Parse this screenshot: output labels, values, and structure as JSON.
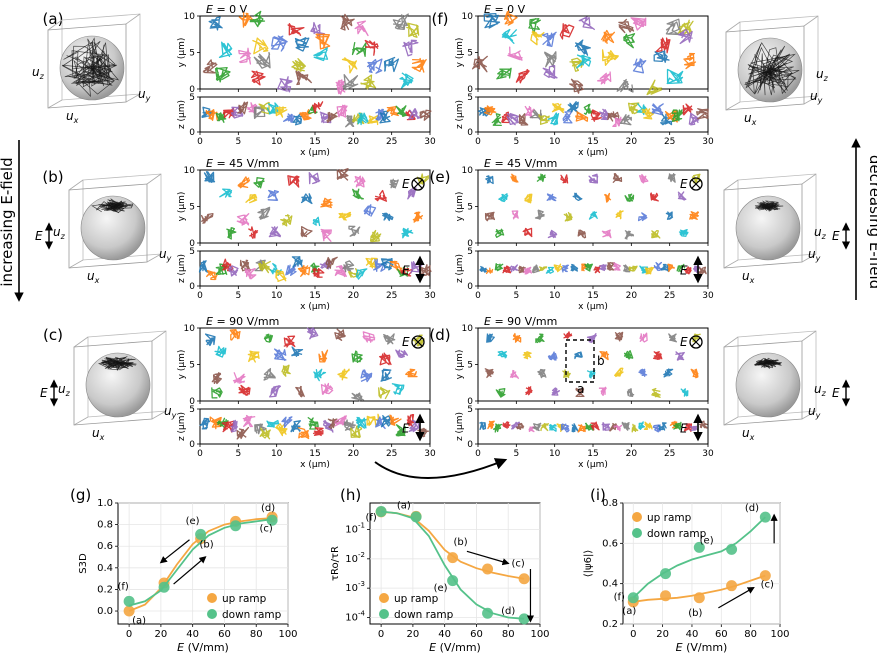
{
  "side_labels": {
    "left": "increasing E-field",
    "right": "decreasing E-field"
  },
  "axis_symbols": {
    "ux": "u",
    "ux_sub": "x",
    "uy": "u",
    "uy_sub": "y",
    "uz": "u",
    "uz_sub": "z",
    "E": "E"
  },
  "panels": [
    {
      "id": "a",
      "label": "(a)",
      "field": "E = 0 V",
      "e_marks": false
    },
    {
      "id": "b",
      "label": "(b)",
      "field": "E = 45 V/mm",
      "e_marks": true
    },
    {
      "id": "c",
      "label": "(c)",
      "field": "E = 90 V/mm",
      "e_marks": true
    },
    {
      "id": "f",
      "label": "(f)",
      "field": "E = 0 V",
      "e_marks": false
    },
    {
      "id": "e",
      "label": "(e)",
      "field": "E = 45 V/mm",
      "e_marks": true
    },
    {
      "id": "d",
      "label": "(d)",
      "field": "E = 90 V/mm",
      "e_marks": true
    }
  ],
  "traj_axes": {
    "xlabel": "x (μm)",
    "ylabel": "y (μm)",
    "zlabel": "z (μm)",
    "x_ticks": [
      "0",
      "5",
      "10",
      "15",
      "20",
      "25",
      "30"
    ],
    "y_ticks": [
      "0",
      "5",
      "10"
    ],
    "z_ticks": [
      "0",
      "5"
    ]
  },
  "unit_cell": {
    "a": "a",
    "b": "b"
  },
  "colors": {
    "up": "#f5a742",
    "down": "#55c28a",
    "arrow": "#000000"
  },
  "chart_data": [
    {
      "id": "g",
      "label": "(g)",
      "type": "line",
      "ylabel": "S3D",
      "xlabel": "E (V/mm)",
      "xlim": [
        -7,
        100
      ],
      "ylim": [
        -0.12,
        1.0
      ],
      "x_ticks": [
        0,
        20,
        40,
        60,
        80,
        100
      ],
      "y_ticks": [
        0.0,
        0.2,
        0.4,
        0.6,
        0.8,
        1.0
      ],
      "legend": {
        "position": "bottom-right",
        "entries": [
          "up ramp",
          "down ramp"
        ]
      },
      "series": [
        {
          "name": "up ramp",
          "x": [
            0,
            22,
            45,
            67,
            90
          ],
          "y": [
            0.0,
            0.26,
            0.67,
            0.83,
            0.87
          ],
          "fit": [
            [
              0,
              0.0
            ],
            [
              10,
              0.06
            ],
            [
              20,
              0.21
            ],
            [
              30,
              0.43
            ],
            [
              40,
              0.62
            ],
            [
              50,
              0.74
            ],
            [
              60,
              0.8
            ],
            [
              70,
              0.83
            ],
            [
              80,
              0.85
            ],
            [
              90,
              0.86
            ]
          ]
        },
        {
          "name": "down ramp",
          "x": [
            0,
            22,
            45,
            67,
            90
          ],
          "y": [
            0.09,
            0.22,
            0.71,
            0.79,
            0.84
          ],
          "fit": [
            [
              0,
              0.05
            ],
            [
              10,
              0.09
            ],
            [
              20,
              0.19
            ],
            [
              30,
              0.38
            ],
            [
              40,
              0.57
            ],
            [
              50,
              0.7
            ],
            [
              60,
              0.77
            ],
            [
              70,
              0.81
            ],
            [
              80,
              0.83
            ],
            [
              90,
              0.85
            ]
          ]
        }
      ],
      "annotations": [
        "(a)",
        "(b)",
        "(c)",
        "(d)",
        "(e)",
        "(f)"
      ]
    },
    {
      "id": "h",
      "label": "(h)",
      "type": "line",
      "ylabel": "τRo/τR",
      "xlabel": "E (V/mm)",
      "yscale": "log",
      "xlim": [
        -7,
        100
      ],
      "ylim": [
        6e-05,
        0.8
      ],
      "x_ticks": [
        0,
        20,
        40,
        60,
        80,
        100
      ],
      "y_ticks": [
        "10^-1",
        "10^-2",
        "10^-3",
        "10^-4"
      ],
      "legend": {
        "position": "bottom-left",
        "entries": [
          "up ramp",
          "down ramp"
        ]
      },
      "series": [
        {
          "name": "up ramp",
          "x": [
            0,
            22,
            45,
            67,
            90
          ],
          "y": [
            0.4,
            0.28,
            0.011,
            0.0045,
            0.0021
          ],
          "fit": [
            [
              0,
              0.4
            ],
            [
              10,
              0.36
            ],
            [
              20,
              0.26
            ],
            [
              30,
              0.09
            ],
            [
              40,
              0.02
            ],
            [
              50,
              0.008
            ],
            [
              60,
              0.0048
            ],
            [
              70,
              0.0034
            ],
            [
              80,
              0.0026
            ],
            [
              90,
              0.0021
            ]
          ]
        },
        {
          "name": "down ramp",
          "x": [
            0,
            22,
            45,
            67,
            90
          ],
          "y": [
            0.41,
            0.27,
            0.0018,
            0.00014,
            9e-05
          ],
          "fit": [
            [
              0,
              0.41
            ],
            [
              10,
              0.36
            ],
            [
              20,
              0.24
            ],
            [
              30,
              0.06
            ],
            [
              40,
              0.006
            ],
            [
              50,
              0.0009
            ],
            [
              60,
              0.00028
            ],
            [
              70,
              0.00014
            ],
            [
              80,
              0.0001
            ],
            [
              90,
              9e-05
            ]
          ]
        }
      ],
      "annotations": [
        "(a)",
        "(b)",
        "(c)",
        "(d)",
        "(e)",
        "(f)"
      ]
    },
    {
      "id": "i",
      "label": "(i)",
      "type": "line",
      "ylabel": "⟨|ψ6|⟩",
      "xlabel": "E (V/mm)",
      "xlim": [
        -7,
        100
      ],
      "ylim": [
        0.2,
        0.8
      ],
      "x_ticks": [
        0,
        20,
        40,
        60,
        80,
        100
      ],
      "y_ticks": [
        0.2,
        0.4,
        0.6,
        0.8
      ],
      "legend": {
        "position": "top-left",
        "entries": [
          "up ramp",
          "down ramp"
        ]
      },
      "series": [
        {
          "name": "up ramp",
          "x": [
            0,
            22,
            45,
            67,
            90
          ],
          "y": [
            0.31,
            0.34,
            0.33,
            0.39,
            0.44
          ],
          "fit": [
            [
              0,
              0.31
            ],
            [
              10,
              0.32
            ],
            [
              20,
              0.325
            ],
            [
              30,
              0.33
            ],
            [
              40,
              0.34
            ],
            [
              50,
              0.355
            ],
            [
              60,
              0.37
            ],
            [
              70,
              0.39
            ],
            [
              80,
              0.415
            ],
            [
              90,
              0.44
            ]
          ]
        },
        {
          "name": "down ramp",
          "x": [
            0,
            22,
            45,
            67,
            90
          ],
          "y": [
            0.33,
            0.45,
            0.58,
            0.57,
            0.73
          ],
          "fit": [
            [
              0,
              0.33
            ],
            [
              10,
              0.4
            ],
            [
              20,
              0.45
            ],
            [
              30,
              0.49
            ],
            [
              40,
              0.52
            ],
            [
              50,
              0.54
            ],
            [
              60,
              0.56
            ],
            [
              70,
              0.6
            ],
            [
              80,
              0.66
            ],
            [
              90,
              0.73
            ]
          ]
        }
      ],
      "annotations": [
        "(a)",
        "(b)",
        "(c)",
        "(d)",
        "(e)",
        "(f)"
      ]
    }
  ]
}
